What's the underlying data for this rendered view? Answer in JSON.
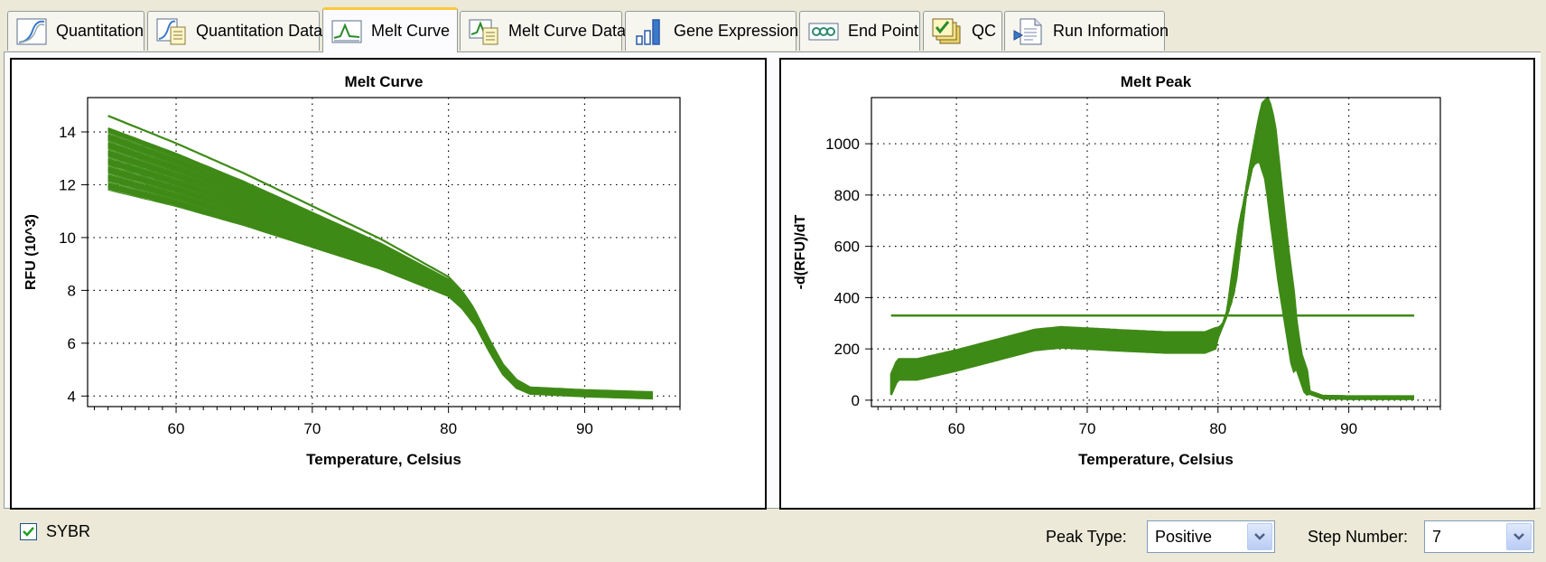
{
  "tabs": [
    {
      "label": "Quantitation",
      "icon": "quantitation-chart-icon",
      "active": false
    },
    {
      "label": "Quantitation Data",
      "icon": "quantitation-data-icon",
      "active": false
    },
    {
      "label": "Melt Curve",
      "icon": "melt-curve-icon",
      "active": true
    },
    {
      "label": "Melt Curve Data",
      "icon": "melt-curve-data-icon",
      "active": false
    },
    {
      "label": "Gene Expression",
      "icon": "bar-chart-icon",
      "active": false
    },
    {
      "label": "End Point",
      "icon": "endpoint-icon",
      "active": false
    },
    {
      "label": "QC",
      "icon": "qc-checklist-icon",
      "active": false
    },
    {
      "label": "Run Information",
      "icon": "run-info-icon",
      "active": false
    }
  ],
  "colors": {
    "curve": "#3f8a17",
    "accent": "#ffc83c"
  },
  "chart_data": [
    {
      "type": "line",
      "title": "Melt Curve",
      "xlabel": "Temperature, Celsius",
      "ylabel": "RFU (10^3)",
      "xlim": [
        53.5,
        97
      ],
      "ylim": [
        3.6,
        15.3
      ],
      "xticks": [
        60,
        70,
        80,
        90
      ],
      "yticks": [
        4,
        6,
        8,
        10,
        12,
        14
      ],
      "grid": true,
      "series_count": 40,
      "representative_x": [
        55,
        60,
        65,
        70,
        75,
        80,
        81,
        82,
        83,
        84,
        85,
        86,
        90,
        95
      ],
      "representative_y": [
        13.0,
        12.2,
        11.3,
        10.3,
        9.3,
        8.1,
        7.6,
        6.9,
        5.9,
        5.0,
        4.45,
        4.2,
        4.1,
        4.02
      ],
      "spread_start": 1.2,
      "spread_end": 0.12
    },
    {
      "type": "line",
      "title": "Melt Peak",
      "xlabel": "Temperature, Celsius",
      "ylabel": "-d(RFU)/dT",
      "xlim": [
        53.5,
        97
      ],
      "ylim": [
        -25,
        1180
      ],
      "xticks": [
        60,
        70,
        80,
        90
      ],
      "yticks": [
        0,
        200,
        400,
        600,
        800,
        1000
      ],
      "grid": true,
      "series_count": 40,
      "representative_x": [
        55,
        55.5,
        57,
        60,
        63,
        66,
        68,
        70,
        73,
        76,
        79,
        80,
        81,
        82,
        83,
        83.5,
        84,
        85,
        86,
        87,
        88,
        90,
        95
      ],
      "representative_y": [
        60,
        120,
        120,
        155,
        195,
        235,
        245,
        240,
        232,
        225,
        225,
        245,
        380,
        780,
        1030,
        1060,
        980,
        540,
        180,
        30,
        12,
        10,
        10
      ],
      "threshold": 330,
      "threshold_xlim": [
        55,
        95
      ]
    }
  ],
  "footer": {
    "channel_label": "SYBR",
    "channel_checked": true,
    "peak_type_label": "Peak Type:",
    "peak_type_value": "Positive",
    "step_number_label": "Step Number:",
    "step_number_value": "7"
  }
}
